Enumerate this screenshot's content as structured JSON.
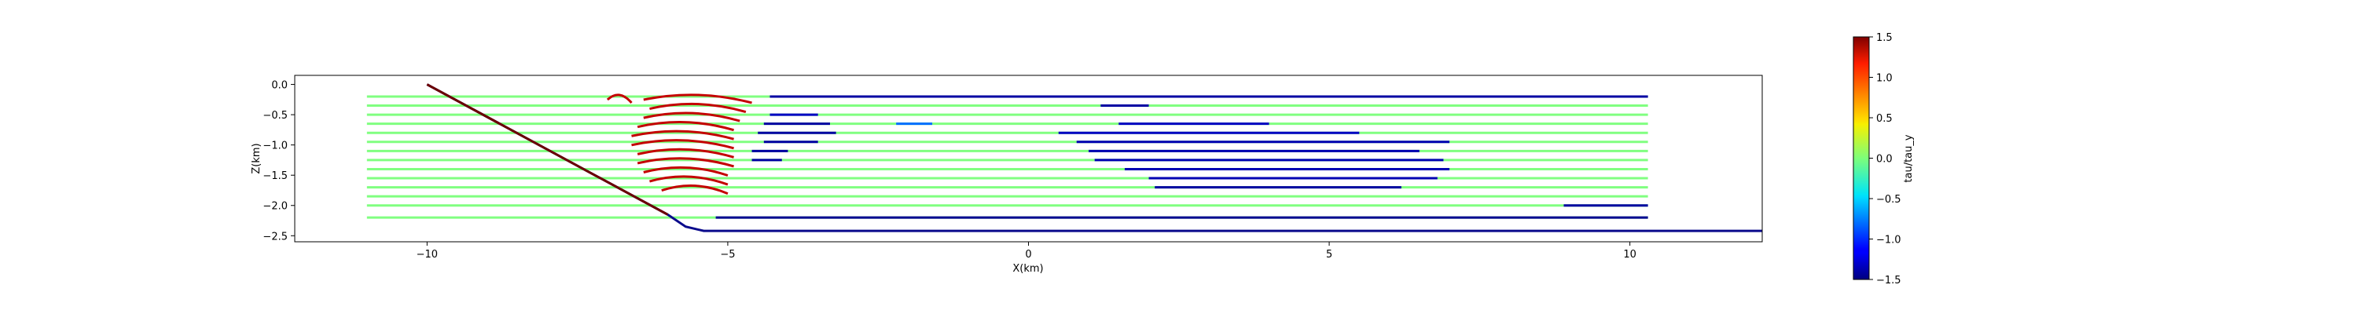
{
  "chart_data": {
    "type": "line",
    "title": "",
    "xlabel": "X(km)",
    "ylabel": "Z(km)",
    "xlim": [
      -12.2,
      12.2
    ],
    "ylim": [
      -2.6,
      0.15
    ],
    "xticks": [
      -10,
      -5,
      0,
      5,
      10
    ],
    "xtick_labels": [
      "−10",
      "−5",
      "0",
      "5",
      "10"
    ],
    "yticks": [
      0.0,
      -0.5,
      -1.0,
      -1.5,
      -2.0,
      -2.5
    ],
    "ytick_labels": [
      "0.0",
      "−0.5",
      "−1.0",
      "−1.5",
      "−2.0",
      "−2.5"
    ],
    "colorbar": {
      "label": "tau/tau_y",
      "range": [
        -1.5,
        1.5
      ],
      "ticks": [
        1.5,
        1.0,
        0.5,
        0.0,
        -0.5,
        -1.0,
        -1.5
      ],
      "tick_labels": [
        "1.5",
        "1.0",
        "0.5",
        "0.0",
        "−0.5",
        "−1.0",
        "−1.5"
      ],
      "colormap": "jet"
    },
    "surface": {
      "points": [
        [
          -10.0,
          0.0
        ],
        [
          -6.0,
          -2.15
        ],
        [
          -5.7,
          -2.35
        ],
        [
          -5.4,
          -2.42
        ],
        [
          12.2,
          -2.42
        ]
      ],
      "color": "#0a0a8c"
    },
    "fault": {
      "points": [
        [
          -10.0,
          0.0
        ],
        [
          -6.0,
          -2.15
        ]
      ],
      "color": "#6b0000"
    },
    "streamlines": {
      "x_start": -11.0,
      "x_end": 10.3,
      "depths": [
        -0.2,
        -0.35,
        -0.5,
        -0.65,
        -0.8,
        -0.95,
        -1.1,
        -1.25,
        -1.4,
        -1.55,
        -1.7,
        -1.85,
        -2.0,
        -2.2
      ],
      "background_value": 0.0,
      "segments": [
        {
          "row": 0,
          "x0": -4.3,
          "x1": 10.3,
          "value": -1.4
        },
        {
          "row": 1,
          "x0": 1.2,
          "x1": 2.0,
          "value": -1.4
        },
        {
          "row": 2,
          "x0": -4.3,
          "x1": -3.5,
          "value": -1.3
        },
        {
          "row": 3,
          "x0": -4.4,
          "x1": -3.3,
          "value": -1.4
        },
        {
          "row": 3,
          "x0": -2.2,
          "x1": -1.6,
          "value": -0.8
        },
        {
          "row": 3,
          "x0": 1.5,
          "x1": 4.0,
          "value": -1.3
        },
        {
          "row": 4,
          "x0": -4.5,
          "x1": -3.2,
          "value": -1.4
        },
        {
          "row": 4,
          "x0": 0.5,
          "x1": 5.5,
          "value": -1.3
        },
        {
          "row": 5,
          "x0": -4.4,
          "x1": -3.5,
          "value": -1.4
        },
        {
          "row": 5,
          "x0": 0.8,
          "x1": 7.0,
          "value": -1.35
        },
        {
          "row": 6,
          "x0": -4.6,
          "x1": -4.0,
          "value": -1.4
        },
        {
          "row": 6,
          "x0": 1.0,
          "x1": 6.5,
          "value": -1.35
        },
        {
          "row": 7,
          "x0": -4.6,
          "x1": -4.1,
          "value": -1.4
        },
        {
          "row": 7,
          "x0": 1.1,
          "x1": 6.9,
          "value": -1.35
        },
        {
          "row": 8,
          "x0": 1.6,
          "x1": 7.0,
          "value": -1.35
        },
        {
          "row": 9,
          "x0": 2.0,
          "x1": 6.8,
          "value": -1.35
        },
        {
          "row": 10,
          "x0": 2.1,
          "x1": 6.2,
          "value": -1.4
        },
        {
          "row": 12,
          "x0": 8.9,
          "x1": 10.3,
          "value": -1.4
        },
        {
          "row": 13,
          "x0": -5.2,
          "x1": 10.3,
          "value": -1.45
        }
      ]
    },
    "high_stress_band": {
      "value": 1.3,
      "rows": [
        {
          "row": 0,
          "x0": -7.0,
          "x1": -6.6
        },
        {
          "row": 0,
          "x0": -6.4,
          "x1": -4.6
        },
        {
          "row": 1,
          "x0": -6.3,
          "x1": -4.7
        },
        {
          "row": 2,
          "x0": -6.4,
          "x1": -4.8
        },
        {
          "row": 3,
          "x0": -6.5,
          "x1": -4.9
        },
        {
          "row": 4,
          "x0": -6.6,
          "x1": -4.9
        },
        {
          "row": 5,
          "x0": -6.6,
          "x1": -4.9
        },
        {
          "row": 6,
          "x0": -6.5,
          "x1": -4.9
        },
        {
          "row": 7,
          "x0": -6.5,
          "x1": -4.9
        },
        {
          "row": 8,
          "x0": -6.4,
          "x1": -5.0
        },
        {
          "row": 9,
          "x0": -6.3,
          "x1": -5.0
        },
        {
          "row": 10,
          "x0": -6.1,
          "x1": -5.0
        }
      ]
    }
  }
}
